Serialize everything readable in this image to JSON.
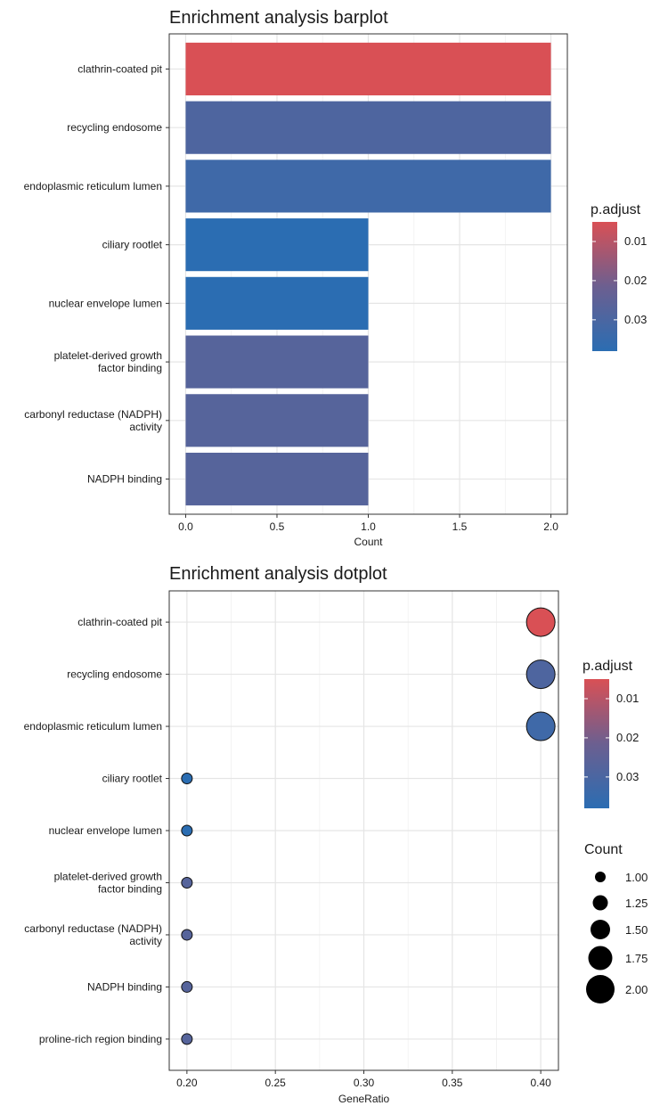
{
  "chart_data": [
    {
      "type": "bar",
      "title": "Enrichment analysis barplot",
      "xlabel": "Count",
      "ylabel": "",
      "xlim": [
        -0.09,
        2.09
      ],
      "x_ticks": [
        "0.0",
        "0.5",
        "1.0",
        "1.5",
        "2.0"
      ],
      "orientation": "horizontal",
      "categories": [
        [
          "clathrin-coated pit"
        ],
        [
          "recycling endosome"
        ],
        [
          "endoplasmic reticulum lumen"
        ],
        [
          "ciliary rootlet"
        ],
        [
          "nuclear envelope lumen"
        ],
        [
          "platelet-derived growth",
          "factor binding"
        ],
        [
          "carbonyl reductase (NADPH)",
          "activity"
        ],
        [
          "NADPH binding"
        ]
      ],
      "values": [
        2,
        2,
        2,
        1,
        1,
        1,
        1,
        1
      ],
      "p_adjust": [
        0.005,
        0.029,
        0.033,
        0.038,
        0.038,
        0.027,
        0.027,
        0.027
      ],
      "grid": true,
      "legend": {
        "position": "right",
        "title": "p.adjust",
        "ticks": [
          "0.01",
          "0.02",
          "0.03"
        ],
        "tick_values": [
          0.01,
          0.02,
          0.03
        ],
        "range": [
          0.005,
          0.038
        ],
        "color_low": "#d95055",
        "color_high": "#2b6db2"
      }
    },
    {
      "type": "scatter",
      "title": "Enrichment analysis dotplot",
      "xlabel": "GeneRatio",
      "ylabel": "",
      "xlim": [
        0.19,
        0.41
      ],
      "x_ticks": [
        "0.20",
        "0.25",
        "0.30",
        "0.35",
        "0.40"
      ],
      "categories": [
        [
          "clathrin-coated pit"
        ],
        [
          "recycling endosome"
        ],
        [
          "endoplasmic reticulum lumen"
        ],
        [
          "ciliary rootlet"
        ],
        [
          "nuclear envelope lumen"
        ],
        [
          "platelet-derived growth",
          "factor binding"
        ],
        [
          "carbonyl reductase (NADPH)",
          "activity"
        ],
        [
          "NADPH binding"
        ],
        [
          "proline-rich region binding"
        ]
      ],
      "gene_ratio": [
        0.4,
        0.4,
        0.4,
        0.2,
        0.2,
        0.2,
        0.2,
        0.2,
        0.2
      ],
      "count": [
        2,
        2,
        2,
        1,
        1,
        1,
        1,
        1,
        1
      ],
      "p_adjust": [
        0.005,
        0.029,
        0.033,
        0.038,
        0.038,
        0.027,
        0.027,
        0.027,
        0.027
      ],
      "grid": true,
      "legend": {
        "position": "right",
        "color_title": "p.adjust",
        "color_ticks": [
          "0.01",
          "0.02",
          "0.03"
        ],
        "color_tick_values": [
          0.01,
          0.02,
          0.03
        ],
        "range": [
          0.005,
          0.038
        ],
        "color_low": "#d95055",
        "color_high": "#2b6db2",
        "size_title": "Count",
        "size_ticks": [
          "1.00",
          "1.25",
          "1.50",
          "1.75",
          "2.00"
        ],
        "size_values": [
          1.0,
          1.25,
          1.5,
          1.75,
          2.0
        ]
      }
    }
  ]
}
